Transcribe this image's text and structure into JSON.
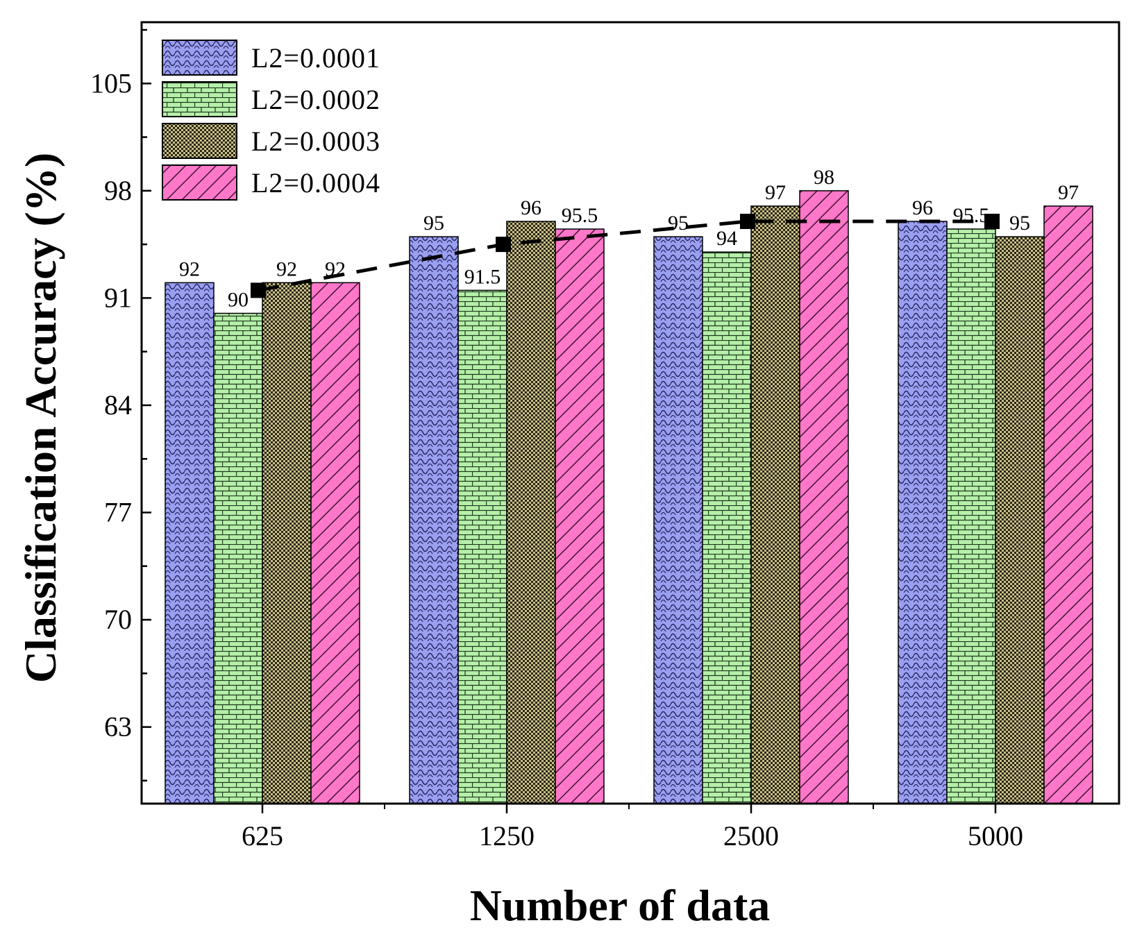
{
  "chart_data": {
    "type": "bar",
    "xlabel": "Number of data",
    "ylabel": "Classification Accuracy (%)",
    "categories": [
      "625",
      "1250",
      "2500",
      "5000"
    ],
    "ylim": [
      58,
      109
    ],
    "yticks": [
      63,
      70,
      77,
      84,
      91,
      98,
      105
    ],
    "yminor_step": 3.5,
    "grid": false,
    "legend_position": "top-left",
    "series": [
      {
        "name": "L2=0.0001",
        "values": [
          92,
          95,
          95,
          96
        ],
        "labels": [
          "92",
          "95",
          "95",
          "96"
        ],
        "color": "#9a9ff0",
        "pattern": "weave"
      },
      {
        "name": "L2=0.0002",
        "values": [
          90,
          91.5,
          94,
          95.5
        ],
        "labels": [
          "90",
          "91.5",
          "94",
          "95.5"
        ],
        "color": "#b5f0a8",
        "pattern": "brick"
      },
      {
        "name": "L2=0.0003",
        "values": [
          92,
          96,
          97,
          95
        ],
        "labels": [
          "92",
          "96",
          "97",
          "95"
        ],
        "color": "#c8c08a",
        "pattern": "checker"
      },
      {
        "name": "L2=0.0004",
        "values": [
          92,
          95.5,
          98,
          97
        ],
        "labels": [
          "92",
          "95.5",
          "98",
          "97"
        ],
        "color": "#ff77c8",
        "pattern": "diagonal"
      }
    ],
    "trend_line": {
      "style": "dashed",
      "marker": "square",
      "color": "#000000",
      "values": [
        91.5,
        94.5,
        96,
        96
      ]
    }
  }
}
